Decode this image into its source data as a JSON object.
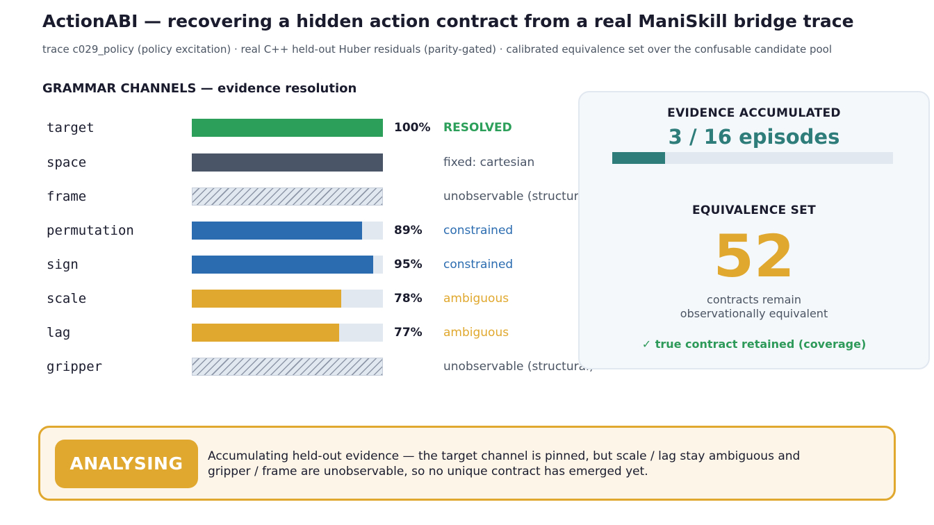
{
  "header": {
    "title": "ActionABI — recovering a hidden action contract from a real ManiSkill bridge trace",
    "subtitle": "trace c029_policy (policy excitation)  ·  real C++ held-out Huber residuals (parity-gated)  ·  calibrated equivalence set over the confusable candidate pool"
  },
  "channels_section": {
    "title": "GRAMMAR CHANNELS — evidence resolution",
    "channels": [
      {
        "name": "target",
        "value": 1.0,
        "pct": "100%",
        "status": "RESOLVED",
        "kind": "resolved",
        "color": "#2ca05a"
      },
      {
        "name": "space",
        "value": 1.0,
        "pct": "",
        "status": "fixed: cartesian",
        "kind": "fixed",
        "color": "#4a5568"
      },
      {
        "name": "frame",
        "value": null,
        "pct": "",
        "status": "unobservable (structural)",
        "kind": "unobservable",
        "color": "#4b5563"
      },
      {
        "name": "permutation",
        "value": 0.89,
        "pct": "89%",
        "status": "constrained",
        "kind": "constrained",
        "color": "#2b6cb0"
      },
      {
        "name": "sign",
        "value": 0.95,
        "pct": "95%",
        "status": "constrained",
        "kind": "constrained",
        "color": "#2b6cb0"
      },
      {
        "name": "scale",
        "value": 0.78,
        "pct": "78%",
        "status": "ambiguous",
        "kind": "ambiguous",
        "color": "#e0a82e"
      },
      {
        "name": "lag",
        "value": 0.77,
        "pct": "77%",
        "status": "ambiguous",
        "kind": "ambiguous",
        "color": "#e0a82e"
      },
      {
        "name": "gripper",
        "value": null,
        "pct": "",
        "status": "unobservable (structural)",
        "kind": "unobservable",
        "color": "#4b5563"
      }
    ]
  },
  "evidence_panel": {
    "title": "EVIDENCE ACCUMULATED",
    "value_text": "3 / 16 episodes",
    "episodes_done": 3,
    "episodes_total": 16,
    "eq_title": "EQUIVALENCE SET",
    "eq_count": "52",
    "eq_caption_line1": "contracts remain",
    "eq_caption_line2": "observationally equivalent",
    "coverage_text": "✓ true contract retained (coverage)"
  },
  "status_banner": {
    "badge": "ANALYSING",
    "message_line1": "Accumulating held-out evidence — the target channel is pinned, but scale / lag stay ambiguous and",
    "message_line2": "gripper / frame are unobservable, so no unique contract has emerged yet."
  }
}
